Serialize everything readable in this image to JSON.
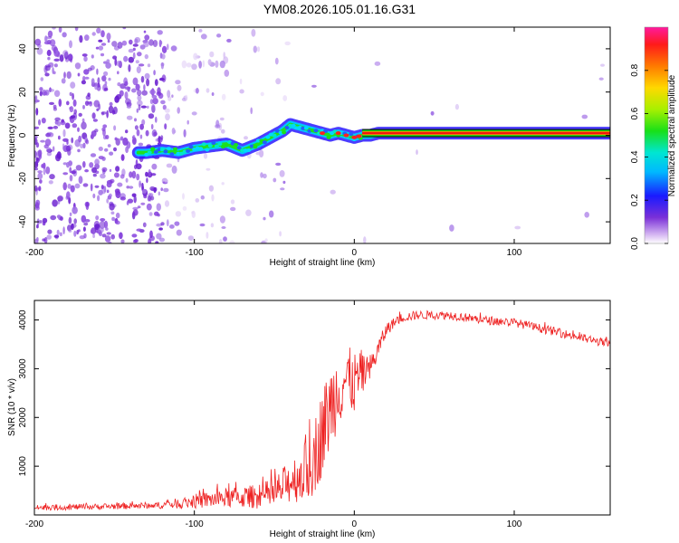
{
  "figure_title": "YM08.2026.105.01.16.G31",
  "colors": {
    "snr_line": "#ee2222",
    "track_core": "#ee1111",
    "scatter": "#7a30d8"
  },
  "chart_data": [
    {
      "type": "heatmap",
      "title": "YM08.2026.105.01.16.G31",
      "xlabel": "Height of straight line (km)",
      "ylabel": "Frequency (Hz)",
      "xlim": [
        -200,
        160
      ],
      "ylim": [
        -50,
        50
      ],
      "xticks": [
        -200,
        -100,
        0,
        100
      ],
      "yticks": [
        -40,
        -20,
        0,
        20,
        40
      ],
      "xtick_labels": [
        "-200",
        "-100",
        "0",
        "100"
      ],
      "ytick_labels": [
        "-40",
        "-20",
        "0",
        "20",
        "40"
      ],
      "colorbar": {
        "label": "Normalized spectral amplitude",
        "range": [
          0,
          1
        ],
        "ticks": [
          0.0,
          0.2,
          0.4,
          0.6,
          0.8
        ],
        "tick_labels": [
          "0.0",
          "0.2",
          "0.4",
          "0.6",
          "0.8"
        ],
        "colormap": "rainbow"
      },
      "ridge": {
        "x": [
          -130,
          -120,
          -110,
          -100,
          -90,
          -80,
          -70,
          -60,
          -50,
          -45,
          -40,
          -35,
          -30,
          -25,
          -20,
          -15,
          -10,
          -5,
          0,
          5,
          10,
          15,
          160
        ],
        "y": [
          -8,
          -7,
          -8,
          -6,
          -5,
          -4,
          -7,
          -4,
          0,
          2,
          5,
          4,
          3,
          2,
          1,
          0,
          1,
          0,
          -1,
          0,
          0,
          1,
          1
        ]
      }
    },
    {
      "type": "line",
      "xlabel": "Height of straight line (km)",
      "ylabel": "SNR (10 * v/v)",
      "xlim": [
        -200,
        160
      ],
      "ylim": [
        0,
        4400
      ],
      "xticks": [
        -200,
        -100,
        0,
        100
      ],
      "yticks": [
        1000,
        2000,
        3000,
        4000
      ],
      "xtick_labels": [
        "-200",
        "-100",
        "0",
        "100"
      ],
      "ytick_labels": [
        "1000",
        "2000",
        "3000",
        "4000"
      ],
      "series": [
        {
          "name": "SNR",
          "x": [
            -200,
            -160,
            -120,
            -100,
            -80,
            -60,
            -50,
            -40,
            -30,
            -25,
            -20,
            -15,
            -10,
            -5,
            0,
            5,
            10,
            15,
            20,
            25,
            30,
            40,
            60,
            80,
            100,
            120,
            140,
            160
          ],
          "y": [
            150,
            170,
            200,
            280,
            350,
            380,
            420,
            700,
            900,
            1200,
            1700,
            2200,
            2600,
            2800,
            2700,
            2900,
            3000,
            3400,
            3800,
            3950,
            4050,
            4100,
            4100,
            4000,
            3950,
            3800,
            3650,
            3500
          ],
          "noise": [
            60,
            60,
            70,
            150,
            200,
            250,
            350,
            450,
            650,
            800,
            900,
            900,
            800,
            700,
            650,
            500,
            300,
            200,
            150,
            100,
            100,
            90,
            90,
            90,
            90,
            90,
            90,
            90
          ]
        }
      ]
    }
  ]
}
